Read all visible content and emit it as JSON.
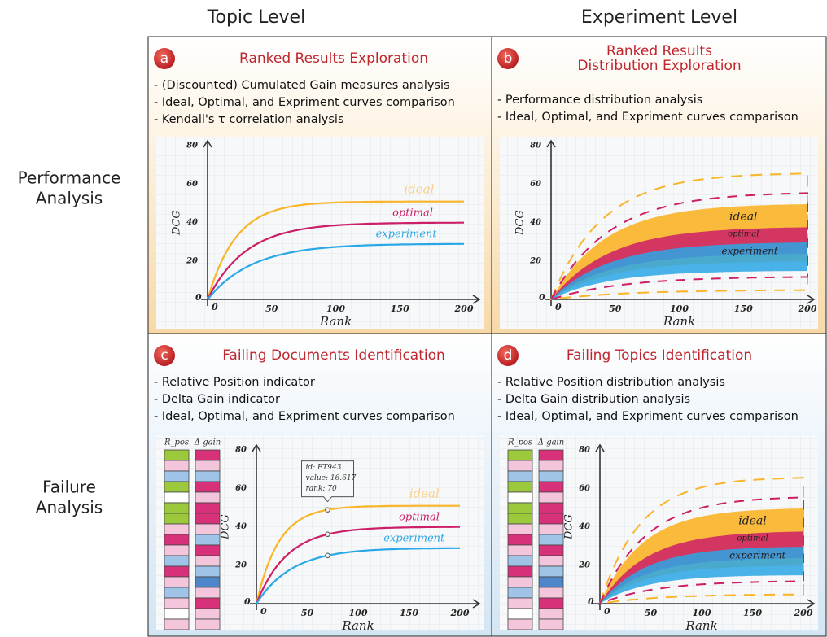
{
  "header": {
    "columns": [
      "Topic Level",
      "Experiment Level"
    ]
  },
  "rows": [
    [
      "Performance",
      "Analysis"
    ],
    [
      "Failure",
      "Analysis"
    ]
  ],
  "panels": [
    {
      "letter": "a",
      "title": [
        "Ranked Results Exploration"
      ],
      "bullets": [
        "- (Discounted) Cumulated Gain measures analysis",
        "- Ideal, Optimal, and Expriment curves comparison",
        "- Kendall's τ correlation analysis"
      ]
    },
    {
      "letter": "b",
      "title": [
        "Ranked Results",
        "Distribution Exploration"
      ],
      "bullets": [
        "- Performance distribution analysis",
        "- Ideal, Optimal, and Expriment curves comparison"
      ]
    },
    {
      "letter": "c",
      "title": [
        "Failing Documents Identification"
      ],
      "bullets": [
        "- Relative Position indicator",
        "- Delta Gain indicator",
        "- Ideal, Optimal, and Expriment curves comparison"
      ],
      "bar_labels": [
        "R_pos",
        "Δ gain"
      ],
      "tooltip": [
        "id: FT943",
        "value: 16.617",
        "rank: 70"
      ]
    },
    {
      "letter": "d",
      "title": [
        "Failing Topics Identification"
      ],
      "bullets": [
        "- Relative Position distribution analysis",
        "- Delta Gain distribution analysis",
        "- Ideal, Optimal, and Expriment curves comparison"
      ],
      "bar_labels": [
        "R_pos",
        "Δ gain"
      ]
    }
  ],
  "sketch": {
    "y_label": "DCG",
    "x_label": "Rank",
    "origin": 0,
    "x_ticks": [
      50,
      100,
      150,
      200
    ],
    "y_ticks": [
      20,
      40,
      60,
      80
    ],
    "curves": [
      "ideal",
      "optimal",
      "experiment"
    ]
  }
}
